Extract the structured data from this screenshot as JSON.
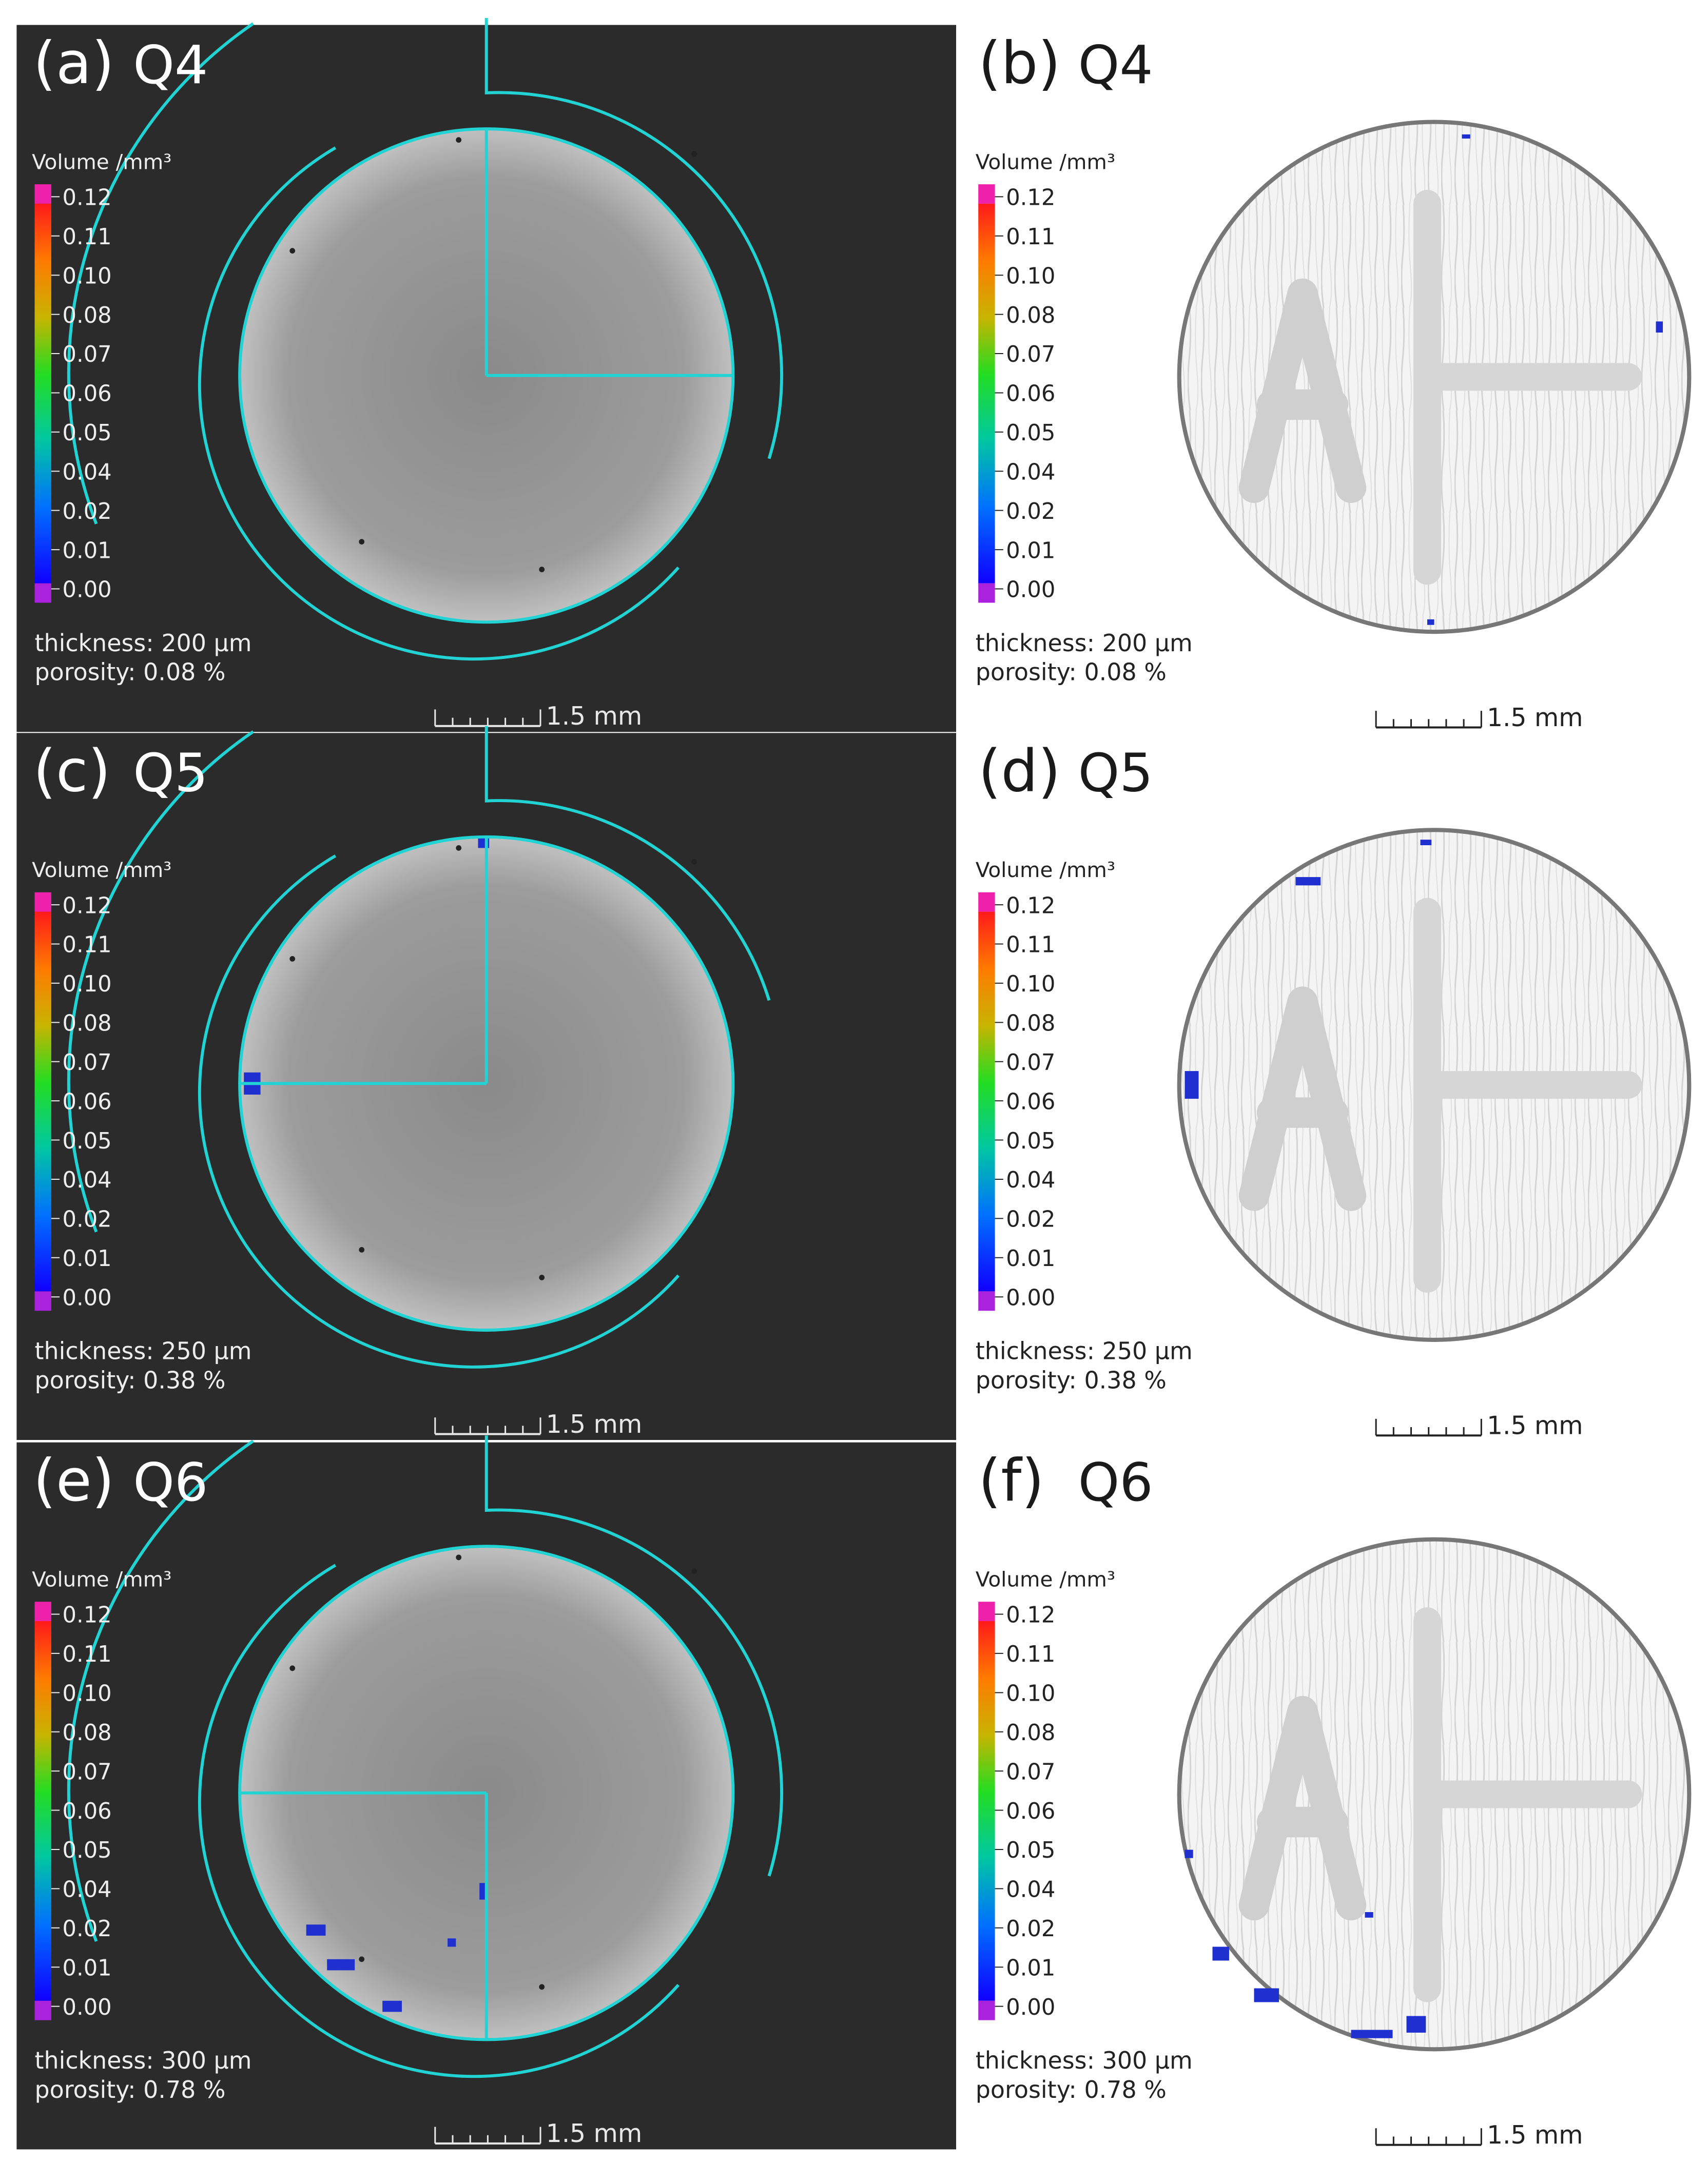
{
  "colors": {
    "dark_panel": "#2b2b2b",
    "cyan_outline": "#22d3d3",
    "pore_blue": "#1f2fd0",
    "light_text": "#eeeeee",
    "dark_text": "#222222"
  },
  "colorbar": {
    "title": "Volume /mm³",
    "ticks": [
      "0.12",
      "0.11",
      "0.10",
      "0.08",
      "0.07",
      "0.06",
      "0.05",
      "0.04",
      "0.02",
      "0.01",
      "0.00"
    ]
  },
  "scale_label": "1.5 mm",
  "panels": [
    {
      "id": "a",
      "letter": "(a)",
      "sample": "Q4",
      "thickness": "thickness: 200 µm",
      "porosity": "porosity:   0.08 %"
    },
    {
      "id": "b",
      "letter": "(b)",
      "sample": "Q4",
      "thickness": "thickness: 200 µm",
      "porosity": "porosity:   0.08 %"
    },
    {
      "id": "c",
      "letter": "(c)",
      "sample": "Q5",
      "thickness": "thickness: 250 µm",
      "porosity": "porosity:   0.38 %"
    },
    {
      "id": "d",
      "letter": "(d)",
      "sample": "Q5",
      "thickness": "thickness: 250 µm",
      "porosity": "porosity:   0.38 %"
    },
    {
      "id": "e",
      "letter": "(e)",
      "sample": "Q6",
      "thickness": "thickness: 300 µm",
      "porosity": "porosity:   0.78 %"
    },
    {
      "id": "f",
      "letter": "(f)",
      "sample": "Q6",
      "thickness": "thickness: 300 µm",
      "porosity": "porosity:   0.78 %"
    }
  ]
}
